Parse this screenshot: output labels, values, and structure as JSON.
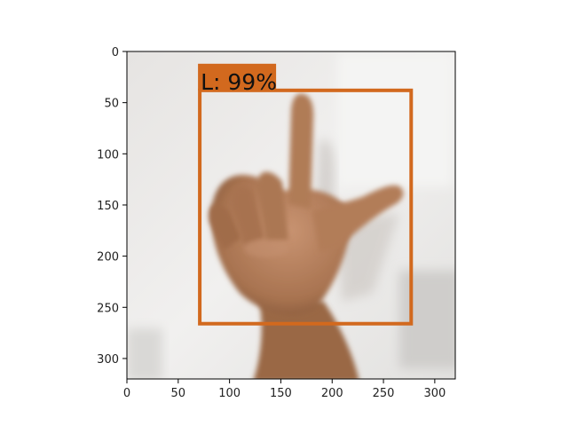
{
  "figure": {
    "image_description_visible": "",
    "x_ticks": [
      "0",
      "50",
      "100",
      "150",
      "200",
      "250",
      "300"
    ],
    "y_ticks": [
      "0",
      "50",
      "100",
      "150",
      "200",
      "250",
      "300"
    ],
    "x_tick_values": [
      0,
      50,
      100,
      150,
      200,
      250,
      300
    ],
    "y_tick_values": [
      0,
      50,
      100,
      150,
      200,
      250,
      300
    ],
    "image_extent": {
      "x": [
        0,
        320
      ],
      "y": [
        0,
        320
      ]
    }
  },
  "detection": {
    "label_text": "L: 99%",
    "box": {
      "x_min": 71,
      "y_min": 38,
      "x_max": 277,
      "y_max": 266
    },
    "color": "#d2691e"
  },
  "colors": {
    "background_light": "#ecebea",
    "skin": "#b07a55",
    "skin_dark": "#8a5a3a",
    "axis": "#000000"
  }
}
